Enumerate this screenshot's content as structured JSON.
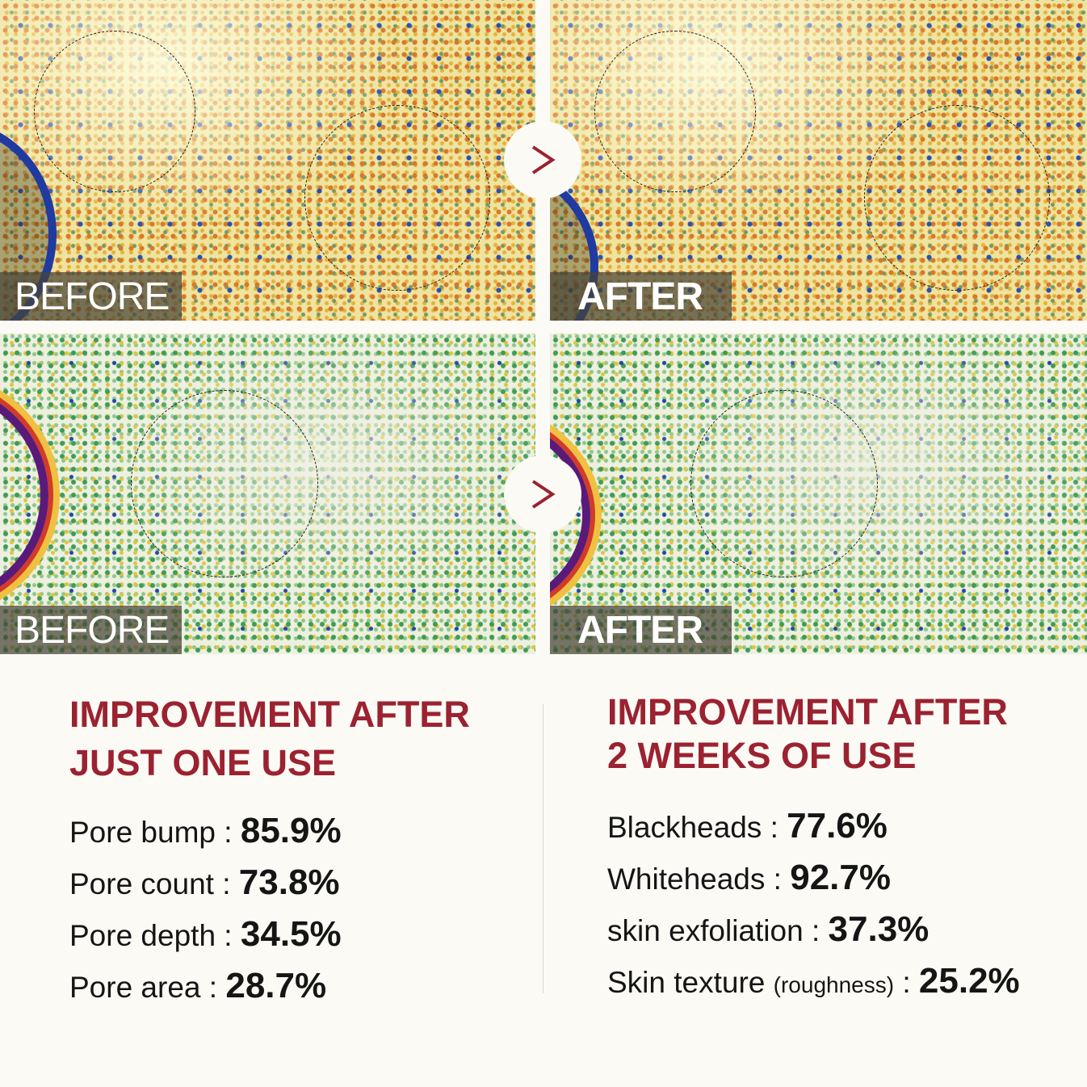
{
  "panels": {
    "top_before_label": "BEFORE",
    "top_after_label": "AFTER",
    "bottom_before_label": "BEFORE",
    "bottom_after_label": "AFTER",
    "arrow_icon": "chevron-right-icon"
  },
  "left": {
    "heading_line1": "IMPROVEMENT AFTER",
    "heading_line2": "JUST ONE USE",
    "stats": [
      {
        "label": "Pore bump",
        "value": "85.9%"
      },
      {
        "label": "Pore count",
        "value": "73.8%"
      },
      {
        "label": "Pore depth",
        "value": "34.5%"
      },
      {
        "label": "Pore area",
        "value": "28.7%"
      }
    ]
  },
  "right": {
    "heading_line1": "IMPROVEMENT AFTER",
    "heading_line2": "2 WEEKS OF USE",
    "stats": [
      {
        "label": "Blackheads",
        "value": "77.6%"
      },
      {
        "label": "Whiteheads",
        "value": "92.7%"
      },
      {
        "label": "skin exfoliation",
        "value": "37.3%"
      },
      {
        "label": "Skin texture",
        "note": "(roughness)",
        "value": "25.2%"
      }
    ]
  },
  "colors": {
    "accent": "#9b2230",
    "background": "#fbfaf5",
    "arrow": "#9b2230"
  }
}
